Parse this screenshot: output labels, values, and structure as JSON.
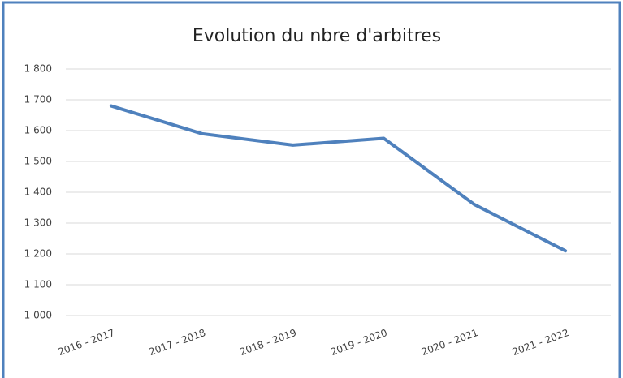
{
  "chart_data": {
    "type": "line",
    "title": "Evolution du nbre d'arbitres",
    "categories": [
      "2016 - 2017",
      "2017 - 2018",
      "2018 - 2019",
      "2019 - 2020",
      "2020 - 2021",
      "2021 - 2022"
    ],
    "series": [
      {
        "name": "Arbitres",
        "color": "#4f81bd",
        "values": [
          1680,
          1590,
          1553,
          1575,
          1360,
          1210
        ]
      }
    ],
    "ylim": [
      1000,
      1800
    ],
    "yticks": [
      {
        "value": 1000,
        "label": "1 000"
      },
      {
        "value": 1100,
        "label": "1 100"
      },
      {
        "value": 1200,
        "label": "1 200"
      },
      {
        "value": 1300,
        "label": "1 300"
      },
      {
        "value": 1400,
        "label": "1 400"
      },
      {
        "value": 1500,
        "label": "1 500"
      },
      {
        "value": 1600,
        "label": "1 600"
      },
      {
        "value": 1700,
        "label": "1 700"
      },
      {
        "value": 1800,
        "label": "1 800"
      }
    ],
    "grid": true,
    "legend": false
  }
}
